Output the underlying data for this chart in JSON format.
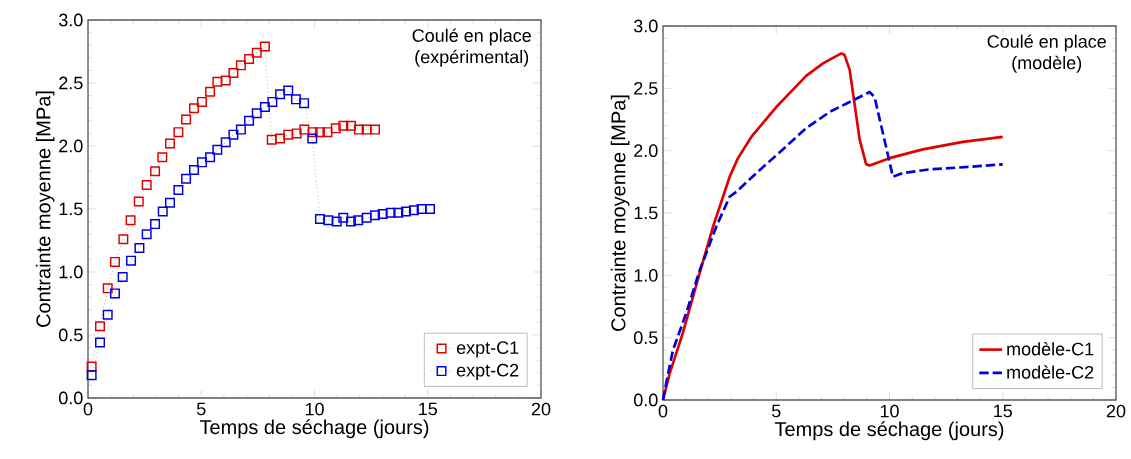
{
  "chart_data": [
    {
      "type": "line",
      "annotations": [
        "Coulé en place",
        "(expérimental)"
      ],
      "xlabel": "Temps de séchage  (jours)",
      "ylabel": "Contrainte moyenne [MPa]",
      "xlim": [
        0,
        20
      ],
      "xticks": [
        0,
        5,
        10,
        15,
        20
      ],
      "ylim": [
        0,
        3
      ],
      "yticks": [
        {
          "value": 0,
          "label": "0.0"
        },
        {
          "value": 0.5,
          "label": "0.5"
        },
        {
          "value": 1,
          "label": "1.0"
        },
        {
          "value": 1.5,
          "label": "1.5"
        },
        {
          "value": 2,
          "label": "2.0"
        },
        {
          "value": 2.5,
          "label": "2.5"
        },
        {
          "value": 3,
          "label": "3.0"
        }
      ],
      "marker": "square",
      "line_style": "dotted",
      "legend": "bottom right",
      "grid": false,
      "series": [
        {
          "name": "expt-C1",
          "color": "#e00000",
          "x": [
            0.16,
            0.53,
            0.87,
            1.19,
            1.56,
            1.88,
            2.24,
            2.59,
            2.96,
            3.28,
            3.62,
            3.99,
            4.33,
            4.68,
            5.03,
            5.39,
            5.71,
            6.08,
            6.42,
            6.75,
            7.11,
            7.45,
            7.81,
            8.11,
            8.48,
            8.84,
            9.21,
            9.55,
            9.92,
            10.24,
            10.57,
            10.94,
            11.27,
            11.61,
            11.96,
            12.3,
            12.67
          ],
          "values": [
            0.25,
            0.57,
            0.87,
            1.08,
            1.26,
            1.41,
            1.56,
            1.69,
            1.8,
            1.91,
            2.02,
            2.11,
            2.21,
            2.3,
            2.35,
            2.43,
            2.51,
            2.52,
            2.58,
            2.64,
            2.69,
            2.74,
            2.79,
            2.05,
            2.06,
            2.09,
            2.1,
            2.13,
            2.11,
            2.11,
            2.11,
            2.14,
            2.16,
            2.16,
            2.13,
            2.13,
            2.13
          ]
        },
        {
          "name": "expt-C2",
          "color": "#0000dd",
          "x": [
            0.16,
            0.53,
            0.87,
            1.19,
            1.53,
            1.9,
            2.27,
            2.59,
            2.96,
            3.3,
            3.62,
            3.99,
            4.33,
            4.68,
            5.03,
            5.39,
            5.71,
            6.08,
            6.42,
            6.75,
            7.11,
            7.45,
            7.81,
            8.14,
            8.48,
            8.84,
            9.18,
            9.54,
            9.9,
            10.24,
            10.61,
            10.98,
            11.27,
            11.61,
            11.93,
            12.3,
            12.67,
            13.01,
            13.36,
            13.7,
            14.04,
            14.39,
            14.73,
            15.1
          ],
          "values": [
            0.18,
            0.44,
            0.66,
            0.83,
            0.96,
            1.09,
            1.19,
            1.3,
            1.38,
            1.48,
            1.55,
            1.65,
            1.74,
            1.81,
            1.87,
            1.91,
            1.97,
            2.03,
            2.09,
            2.13,
            2.2,
            2.26,
            2.31,
            2.35,
            2.41,
            2.44,
            2.37,
            2.34,
            2.06,
            1.42,
            1.41,
            1.4,
            1.43,
            1.4,
            1.41,
            1.43,
            1.45,
            1.46,
            1.47,
            1.47,
            1.48,
            1.49,
            1.5,
            1.5
          ]
        }
      ]
    },
    {
      "type": "line",
      "annotations": [
        "Coulé en place",
        "(modèle)"
      ],
      "xlabel": "Temps de séchage  (jours)",
      "ylabel": "Contrainte moyenne [MPa]",
      "xlim": [
        0,
        20
      ],
      "xticks": [
        0,
        5,
        10,
        15,
        20
      ],
      "ylim": [
        0,
        3
      ],
      "yticks": [
        {
          "value": 0,
          "label": "0.0"
        },
        {
          "value": 0.5,
          "label": "0.5"
        },
        {
          "value": 1,
          "label": "1.0"
        },
        {
          "value": 1.5,
          "label": "1.5"
        },
        {
          "value": 2,
          "label": "2.0"
        },
        {
          "value": 2.5,
          "label": "2.5"
        },
        {
          "value": 3,
          "label": "3.0"
        }
      ],
      "marker": "none",
      "legend": "bottom right",
      "grid": false,
      "series": [
        {
          "name": "modèle-C1",
          "color": "#e00000",
          "line_style": "solid",
          "x": [
            0,
            0.29,
            0.88,
            1.62,
            2.21,
            2.65,
            2.94,
            3.31,
            3.9,
            5.0,
            5.74,
            6.32,
            7.06,
            7.87,
            8.01,
            8.24,
            8.68,
            8.97,
            9.12,
            10.0,
            11.47,
            13.24,
            15.0
          ],
          "values": [
            0,
            0.21,
            0.54,
            1.02,
            1.39,
            1.63,
            1.79,
            1.94,
            2.11,
            2.35,
            2.49,
            2.6,
            2.7,
            2.78,
            2.77,
            2.65,
            2.09,
            1.89,
            1.88,
            1.94,
            2.01,
            2.07,
            2.11
          ]
        },
        {
          "name": "modèle-C2",
          "color": "#0000dd",
          "line_style": "dashed",
          "x": [
            0,
            0.22,
            0.44,
            1.03,
            1.62,
            2.35,
            2.94,
            3.24,
            4.12,
            5.29,
            6.32,
            7.35,
            8.24,
            9.12,
            9.34,
            9.71,
            10.15,
            10.59,
            11.76,
            13.53,
            15.0
          ],
          "values": [
            0,
            0.21,
            0.4,
            0.7,
            1.04,
            1.39,
            1.63,
            1.67,
            1.82,
            2.01,
            2.18,
            2.31,
            2.39,
            2.47,
            2.43,
            2.14,
            1.79,
            1.82,
            1.85,
            1.87,
            1.89
          ]
        }
      ]
    }
  ]
}
